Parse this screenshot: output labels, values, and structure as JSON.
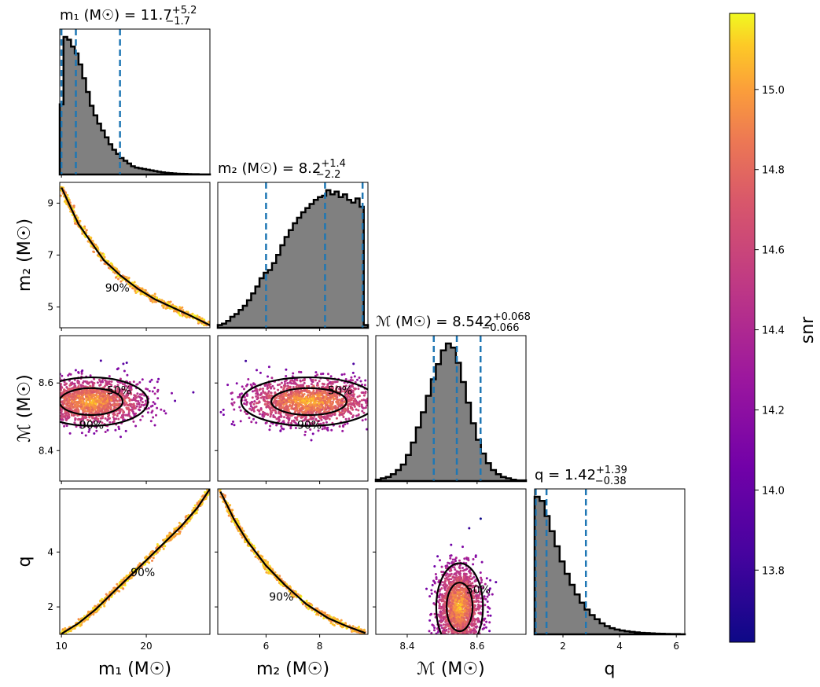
{
  "chart_data": {
    "type": "scatter",
    "subtype": "corner_plot",
    "parameters": [
      "m1",
      "m2",
      "mc",
      "q"
    ],
    "axis_labels": {
      "m1": "m₁ (M☉)",
      "m2": "m₂ (M☉)",
      "mc": "ℳ (M☉)",
      "q": "q"
    },
    "titles": {
      "m1": {
        "lhs": "m₁ (M☉) = 11.7",
        "up": "+5.2",
        "down": "−1.7"
      },
      "m2": {
        "lhs": "m₂ (M☉) = 8.2",
        "up": "+1.4",
        "down": "−2.2"
      },
      "mc": {
        "lhs": "ℳ (M☉) = 8.542",
        "up": "+0.068",
        "down": "−0.066"
      },
      "q": {
        "lhs": "q = 1.42",
        "up": "+1.39",
        "down": "−0.38"
      }
    },
    "ticks": {
      "m1": {
        "values": [
          10,
          20
        ],
        "labels": [
          "10",
          "20"
        ]
      },
      "m2": {
        "values": [
          5,
          7,
          9
        ],
        "labels": [
          "5",
          "7",
          "9"
        ],
        "x_values": [
          6,
          8
        ],
        "x_labels": [
          "6",
          "8"
        ]
      },
      "mc": {
        "values": [
          8.4,
          8.6
        ],
        "labels": [
          "8.4",
          "8.6"
        ]
      },
      "q": {
        "values": [
          2,
          4
        ],
        "labels": [
          "2",
          "4"
        ],
        "x_values": [
          2,
          4,
          6
        ],
        "x_labels": [
          "2",
          "4",
          "6"
        ]
      }
    },
    "ranges": {
      "m1": [
        9.8,
        27.5
      ],
      "m2": [
        4.2,
        9.8
      ],
      "mc": [
        8.31,
        8.74
      ],
      "q": [
        1.0,
        6.3
      ]
    },
    "quantiles": {
      "m1": [
        10.0,
        11.7,
        16.9
      ],
      "m2": [
        6.0,
        8.2,
        9.6
      ],
      "mc": [
        8.476,
        8.542,
        8.61
      ],
      "q": [
        1.04,
        1.42,
        2.81
      ]
    },
    "histograms": {
      "m1": [
        0.51,
        1.0,
        0.98,
        0.93,
        0.88,
        0.8,
        0.7,
        0.6,
        0.5,
        0.43,
        0.37,
        0.32,
        0.27,
        0.22,
        0.18,
        0.15,
        0.12,
        0.1,
        0.08,
        0.06,
        0.05,
        0.045,
        0.04,
        0.035,
        0.03,
        0.025,
        0.02,
        0.016,
        0.012,
        0.01,
        0.008,
        0.006,
        0.005,
        0.004,
        0.003,
        0.002,
        0.002,
        0.001,
        0.001,
        0.001
      ],
      "m2": [
        0.02,
        0.03,
        0.05,
        0.08,
        0.1,
        0.13,
        0.16,
        0.2,
        0.25,
        0.3,
        0.36,
        0.4,
        0.42,
        0.47,
        0.53,
        0.6,
        0.66,
        0.71,
        0.76,
        0.8,
        0.84,
        0.87,
        0.9,
        0.93,
        0.95,
        0.96,
        1.0,
        0.97,
        0.99,
        0.95,
        0.97,
        0.93,
        0.91,
        0.94,
        0.88,
        0.02
      ],
      "mc": [
        0.01,
        0.02,
        0.03,
        0.05,
        0.08,
        0.12,
        0.19,
        0.28,
        0.39,
        0.5,
        0.62,
        0.74,
        0.85,
        0.95,
        1.0,
        0.97,
        0.86,
        0.72,
        0.57,
        0.42,
        0.3,
        0.2,
        0.13,
        0.08,
        0.05,
        0.03,
        0.02,
        0.01,
        0.005,
        0.005
      ],
      "q": [
        1.0,
        0.97,
        0.86,
        0.75,
        0.64,
        0.53,
        0.44,
        0.36,
        0.29,
        0.23,
        0.18,
        0.14,
        0.11,
        0.08,
        0.06,
        0.045,
        0.035,
        0.028,
        0.022,
        0.018,
        0.014,
        0.011,
        0.009,
        0.007,
        0.005,
        0.004,
        0.003,
        0.002,
        0.002,
        0.001
      ]
    },
    "scatter_shapes": {
      "m1_m2": {
        "kind": "curve",
        "points": [
          [
            10.0,
            9.6
          ],
          [
            11.0,
            8.9
          ],
          [
            12.0,
            8.2
          ],
          [
            13.5,
            7.5
          ],
          [
            15.0,
            6.8
          ],
          [
            17.0,
            6.2
          ],
          [
            19.0,
            5.7
          ],
          [
            21.0,
            5.3
          ],
          [
            23.0,
            5.0
          ],
          [
            25.0,
            4.7
          ],
          [
            27.5,
            4.3
          ]
        ]
      },
      "m1_q": {
        "kind": "curve",
        "points": [
          [
            10.0,
            1.02
          ],
          [
            12.0,
            1.4
          ],
          [
            14.0,
            1.9
          ],
          [
            16.0,
            2.5
          ],
          [
            18.0,
            3.1
          ],
          [
            20.0,
            3.7
          ],
          [
            22.0,
            4.3
          ],
          [
            24.0,
            4.9
          ],
          [
            26.0,
            5.6
          ],
          [
            27.5,
            6.3
          ]
        ]
      },
      "m2_q": {
        "kind": "curve",
        "points": [
          [
            4.3,
            6.2
          ],
          [
            4.8,
            5.2
          ],
          [
            5.3,
            4.4
          ],
          [
            6.0,
            3.5
          ],
          [
            6.7,
            2.8
          ],
          [
            7.5,
            2.1
          ],
          [
            8.3,
            1.6
          ],
          [
            9.0,
            1.3
          ],
          [
            9.7,
            1.05
          ]
        ]
      },
      "m1_mc": {
        "kind": "blob",
        "center": [
          13.5,
          8.545
        ],
        "spread": [
          4.5,
          0.045
        ]
      },
      "m2_mc": {
        "kind": "blob",
        "center": [
          7.6,
          8.545
        ],
        "spread": [
          1.7,
          0.045
        ]
      },
      "mc_q": {
        "kind": "blob",
        "center": [
          8.55,
          2.0
        ],
        "spread": [
          0.045,
          1.0
        ]
      }
    },
    "contour_labels": [
      "50%",
      "90%"
    ],
    "colorbar": {
      "label": "snr",
      "min": 13.62,
      "max": 15.19,
      "ticks": [
        13.8,
        14.0,
        14.2,
        14.4,
        14.6,
        14.8,
        15.0
      ],
      "tick_labels": [
        "13.8",
        "14.0",
        "14.2",
        "14.4",
        "14.6",
        "14.8",
        "15.0"
      ],
      "colormap": "plasma"
    },
    "colors": {
      "histogram_fill": "#808080",
      "quantile_line": "#1f77b4",
      "contour": "#000000"
    }
  }
}
